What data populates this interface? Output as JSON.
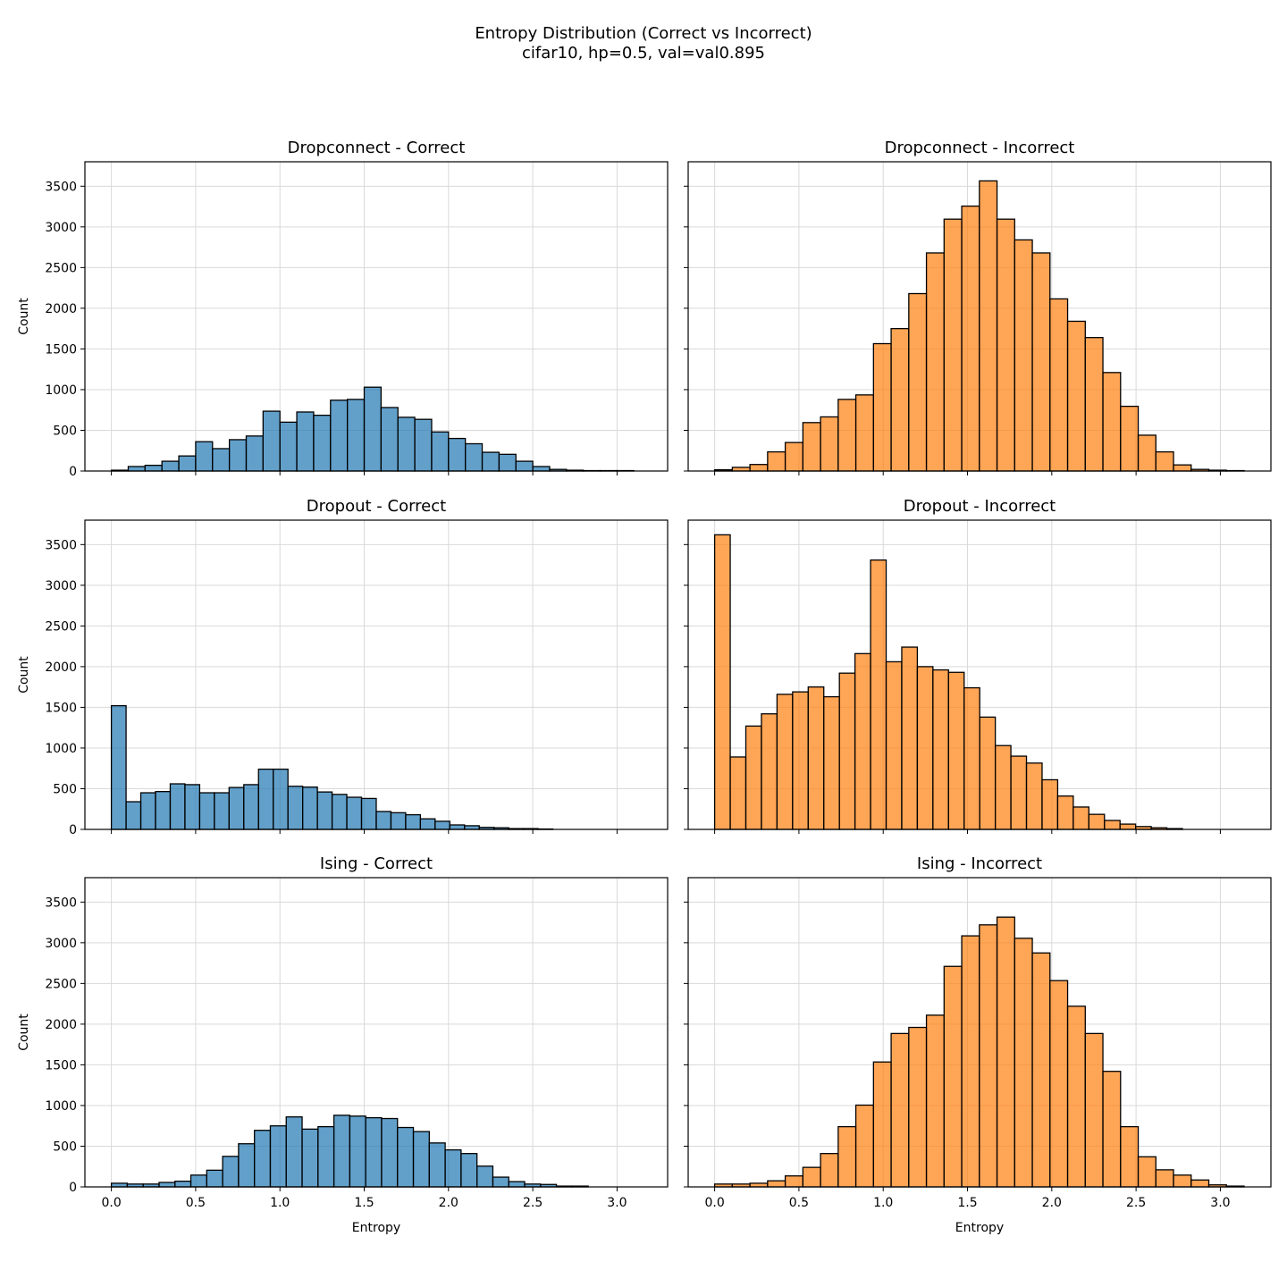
{
  "figure": {
    "title": "Entropy Distribution (Correct vs Incorrect)",
    "subtitle": "cifar10, hp=0.5, val=val0.895"
  },
  "colors": {
    "correct": "#1f77b4",
    "incorrect": "#ff7f0e",
    "edge": "#000000",
    "grid": "#d9d9d9"
  },
  "chart_data": [
    {
      "type": "bar",
      "title": "Dropconnect - Correct",
      "series": "correct",
      "xlabel": "",
      "ylabel": "Count",
      "xlim": [
        -0.157,
        3.3
      ],
      "ylim": [
        0,
        3800
      ],
      "bin_start": 0.0,
      "bin_width": 0.1,
      "grid": true,
      "values": [
        10,
        55,
        70,
        120,
        185,
        360,
        275,
        385,
        430,
        735,
        600,
        725,
        685,
        870,
        880,
        1030,
        780,
        660,
        635,
        480,
        400,
        335,
        230,
        205,
        120,
        55,
        20,
        10,
        5,
        5,
        5
      ]
    },
    {
      "type": "bar",
      "title": "Dropconnect - Incorrect",
      "series": "incorrect",
      "xlabel": "",
      "ylabel": "",
      "xlim": [
        -0.157,
        3.3
      ],
      "ylim": [
        0,
        3800
      ],
      "bin_start": 0.0,
      "bin_width": 0.1047,
      "grid": true,
      "values": [
        15,
        45,
        80,
        235,
        350,
        595,
        665,
        880,
        935,
        1565,
        1750,
        2180,
        2680,
        3095,
        3255,
        3565,
        3095,
        2840,
        2680,
        2115,
        1840,
        1640,
        1210,
        795,
        440,
        235,
        75,
        20,
        10,
        5
      ]
    },
    {
      "type": "bar",
      "title": "Dropout - Correct",
      "series": "correct",
      "xlabel": "",
      "ylabel": "Count",
      "xlim": [
        -0.157,
        3.3
      ],
      "ylim": [
        0,
        3800
      ],
      "bin_start": 0.0,
      "bin_width": 0.0873,
      "grid": true,
      "values": [
        1520,
        340,
        450,
        465,
        560,
        550,
        450,
        450,
        515,
        550,
        740,
        740,
        530,
        520,
        460,
        430,
        395,
        380,
        220,
        205,
        180,
        130,
        100,
        55,
        45,
        25,
        20,
        10,
        10,
        5
      ]
    },
    {
      "type": "bar",
      "title": "Dropout - Incorrect",
      "series": "incorrect",
      "xlabel": "",
      "ylabel": "",
      "xlim": [
        -0.157,
        3.3
      ],
      "ylim": [
        0,
        3800
      ],
      "bin_start": 0.0,
      "bin_width": 0.0925,
      "grid": true,
      "values": [
        3620,
        890,
        1270,
        1420,
        1660,
        1690,
        1750,
        1630,
        1920,
        2160,
        3310,
        2060,
        2240,
        2000,
        1960,
        1930,
        1740,
        1380,
        1030,
        900,
        815,
        610,
        410,
        275,
        185,
        110,
        65,
        35,
        20,
        10
      ]
    },
    {
      "type": "bar",
      "title": "Ising - Correct",
      "series": "correct",
      "xlabel": "Entropy",
      "ylabel": "Count",
      "xlim": [
        -0.157,
        3.3
      ],
      "ylim": [
        0,
        3800
      ],
      "bin_start": 0.0,
      "bin_width": 0.0943,
      "grid": true,
      "values": [
        45,
        35,
        35,
        55,
        70,
        145,
        205,
        375,
        530,
        695,
        750,
        860,
        710,
        740,
        880,
        870,
        850,
        840,
        730,
        680,
        540,
        455,
        410,
        255,
        120,
        65,
        35,
        30,
        10,
        10
      ]
    },
    {
      "type": "bar",
      "title": "Ising - Incorrect",
      "series": "incorrect",
      "xlabel": "Entropy",
      "ylabel": "",
      "xlim": [
        -0.157,
        3.3
      ],
      "ylim": [
        0,
        3800
      ],
      "bin_start": 0.0,
      "bin_width": 0.1047,
      "grid": true,
      "values": [
        35,
        35,
        45,
        75,
        135,
        240,
        410,
        740,
        1005,
        1535,
        1885,
        1960,
        2110,
        2710,
        3085,
        3220,
        3315,
        3055,
        2875,
        2535,
        2220,
        1885,
        1420,
        740,
        370,
        210,
        145,
        85,
        25,
        10
      ]
    }
  ],
  "axes": {
    "xticks": [
      0.0,
      0.5,
      1.0,
      1.5,
      2.0,
      2.5,
      3.0
    ],
    "xtick_labels": [
      "0.0",
      "0.5",
      "1.0",
      "1.5",
      "2.0",
      "2.5",
      "3.0"
    ],
    "yticks": [
      0,
      500,
      1000,
      1500,
      2000,
      2500,
      3000,
      3500
    ],
    "ytick_labels": [
      "0",
      "500",
      "1000",
      "1500",
      "2000",
      "2500",
      "3000",
      "3500"
    ]
  }
}
